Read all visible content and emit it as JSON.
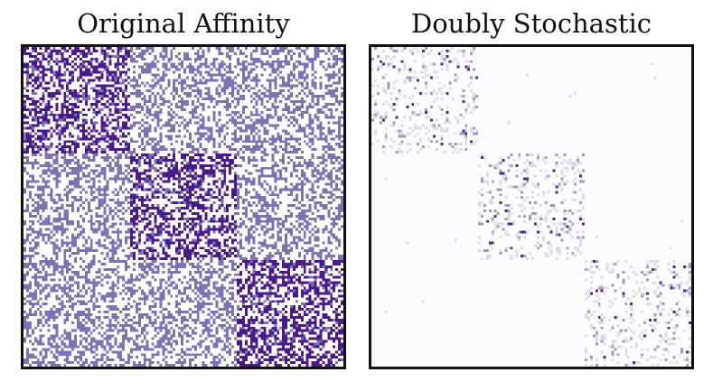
{
  "chart_data": [
    {
      "type": "heatmap",
      "title": "Original Affinity",
      "matrix_size": 120,
      "blocks": [
        {
          "rows": [
            0,
            40
          ],
          "cols": [
            0,
            40
          ]
        },
        {
          "rows": [
            40,
            80
          ],
          "cols": [
            40,
            80
          ]
        },
        {
          "rows": [
            80,
            120
          ],
          "cols": [
            80,
            120
          ]
        }
      ],
      "within_block_density": 0.55,
      "between_block_density": 0.45,
      "colors": {
        "background": "#ffffff",
        "within_block": "#4a1a8c",
        "between_block": "#7b73b4"
      },
      "axes_visible": false,
      "grid": false
    },
    {
      "type": "heatmap",
      "title": "Doubly Stochastic",
      "matrix_size": 120,
      "blocks": [
        {
          "rows": [
            0,
            40
          ],
          "cols": [
            0,
            40
          ]
        },
        {
          "rows": [
            40,
            80
          ],
          "cols": [
            40,
            80
          ]
        },
        {
          "rows": [
            80,
            120
          ],
          "cols": [
            80,
            120
          ]
        }
      ],
      "within_block_density": 0.22,
      "between_block_density": 0.0,
      "colors": {
        "background": "#fcfbfd",
        "light": "#dcdaeb",
        "mid": "#9e9ac8",
        "dark": "#54278f"
      },
      "axes_visible": false,
      "grid": false
    }
  ]
}
